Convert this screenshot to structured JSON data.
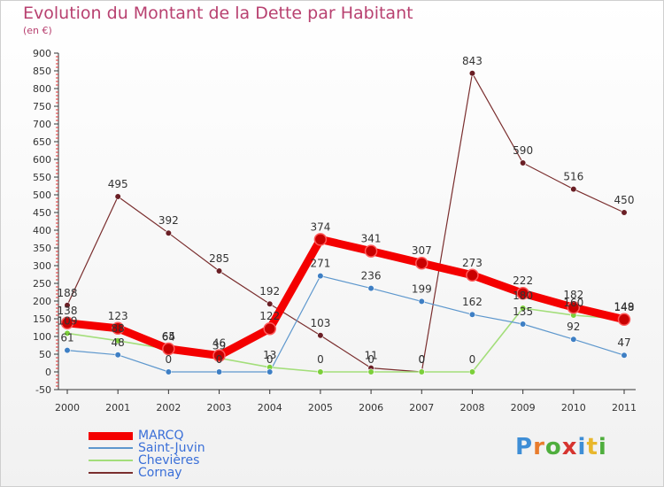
{
  "header": {
    "title": "Evolution du Montant de la Dette par Habitant",
    "subtitle": "(en €)"
  },
  "logo": {
    "text": "Proxiti",
    "letters": [
      {
        "ch": "P",
        "color": "#3e8ed6"
      },
      {
        "ch": "r",
        "color": "#e87c2d"
      },
      {
        "ch": "o",
        "color": "#4fae3d"
      },
      {
        "ch": "x",
        "color": "#d6342f"
      },
      {
        "ch": "i",
        "color": "#3e8ed6"
      },
      {
        "ch": "t",
        "color": "#e8b72d"
      },
      {
        "ch": "i",
        "color": "#4fae3d"
      }
    ]
  },
  "chart_data": {
    "type": "line",
    "title": "Evolution du Montant de la Dette par Habitant",
    "subtitle": "(en €)",
    "xlabel": "",
    "ylabel": "",
    "ylim": [
      -50,
      900
    ],
    "yticks": [
      -50,
      0,
      50,
      100,
      150,
      200,
      250,
      300,
      350,
      400,
      450,
      500,
      550,
      600,
      650,
      700,
      750,
      800,
      850,
      900
    ],
    "grid": false,
    "legend_position": "bottom-left",
    "categories": [
      "2000",
      "2001",
      "2002",
      "2003",
      "2004",
      "2005",
      "2006",
      "2007",
      "2008",
      "2009",
      "2010",
      "2011"
    ],
    "series": [
      {
        "name": "MARCQ",
        "color": "#f40000",
        "marker": "#c90000",
        "values": [
          138,
          123,
          65,
          46,
          122,
          374,
          341,
          307,
          273,
          222,
          182,
          148
        ]
      },
      {
        "name": "Saint-Juvin",
        "color": "#5d97cd",
        "marker": "#3e7fc4",
        "values": [
          61,
          48,
          0,
          0,
          0,
          271,
          236,
          199,
          162,
          135,
          92,
          47
        ]
      },
      {
        "name": "Chevières",
        "color": "#a3de7a",
        "marker": "#7ccf3a",
        "values": [
          109,
          88,
          64,
          39,
          13,
          0,
          0,
          0,
          0,
          180,
          160,
          149
        ]
      },
      {
        "name": "Cornay",
        "color": "#7a2e2e",
        "marker": "#6a1f25",
        "values": [
          188,
          495,
          392,
          285,
          192,
          103,
          11,
          0,
          843,
          590,
          516,
          450
        ]
      }
    ]
  }
}
